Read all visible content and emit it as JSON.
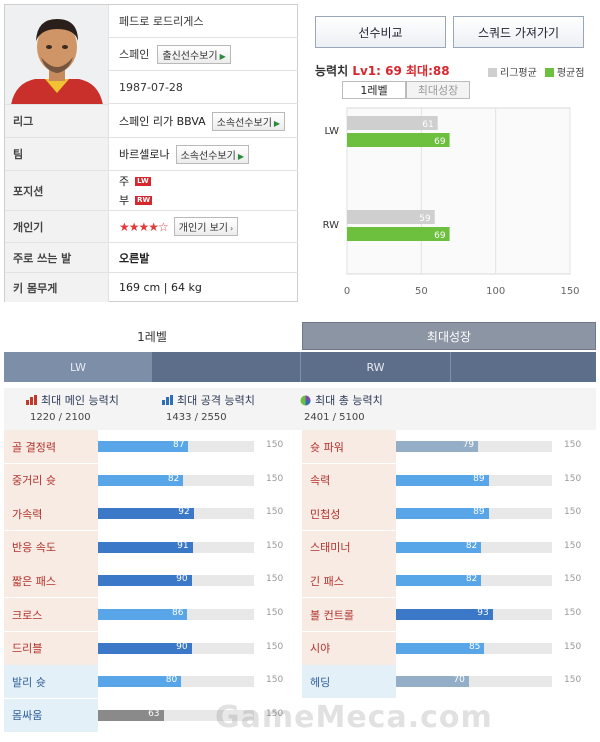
{
  "player": {
    "name": "페드로 로드리게스",
    "nation": "스페인",
    "nation_btn": "출신선수보기",
    "birth": "1987-07-28",
    "rows": [
      {
        "label": "리그",
        "value": "스페인 리가 BBVA",
        "btn": "소속선수보기"
      },
      {
        "label": "팀",
        "value": "바르셀로나",
        "btn": "소속선수보기"
      },
      {
        "label": "포지션",
        "main_label": "주",
        "main_pos": "LW",
        "sub_label": "부",
        "sub_pos": "RW"
      },
      {
        "label": "개인기",
        "stars": "★★★★☆",
        "btn": "개인기 보기"
      },
      {
        "label": "주로 쓰는 발",
        "value": "오른발"
      },
      {
        "label": "키 몸무게",
        "value": "169 cm | 64 kg"
      }
    ]
  },
  "compare": {
    "btn_compare": "선수비교",
    "btn_squad": "스쿼드 가져가기",
    "rating_label": "능력치",
    "rating_value": "Lv1: 69 최대:88",
    "legend": [
      {
        "label": "리그평균",
        "color": "#cfcfcf"
      },
      {
        "label": "평균점",
        "color": "#6dbf3e"
      }
    ],
    "tab_level1": "1레벨",
    "tab_max": "최대성장"
  },
  "chart_data": {
    "type": "bar",
    "orientation": "horizontal",
    "categories": [
      "LW",
      "RW"
    ],
    "series": [
      {
        "name": "리그평균",
        "values": [
          61,
          59
        ],
        "color": "#cfcfcf"
      },
      {
        "name": "평균점",
        "values": [
          69,
          69
        ],
        "color": "#6dbf3e"
      }
    ],
    "xlim": [
      0,
      150
    ],
    "xticks": [
      0,
      50,
      100,
      150
    ],
    "grid": true
  },
  "level_tabs": {
    "level1": "1레벨",
    "max": "최대성장"
  },
  "positions": [
    "LW",
    "RW"
  ],
  "summary": [
    {
      "title": "최대 메인 능력치",
      "value": "1220 / 2100"
    },
    {
      "title": "최대 공격 능력치",
      "value": "1433 / 2550"
    },
    {
      "title": "최대 총 능력치",
      "value": "2401 / 5100"
    }
  ],
  "stats_left": [
    {
      "label": "골 결정력",
      "value": 87
    },
    {
      "label": "중거리 슛",
      "value": 82
    },
    {
      "label": "가속력",
      "value": 92
    },
    {
      "label": "반응 속도",
      "value": 91
    },
    {
      "label": "짧은 패스",
      "value": 90
    },
    {
      "label": "크로스",
      "value": 86
    },
    {
      "label": "드리블",
      "value": 90
    },
    {
      "label": "발리 슛",
      "value": 80
    },
    {
      "label": "몸싸움",
      "value": 63
    }
  ],
  "stats_right": [
    {
      "label": "슛 파워",
      "value": 79
    },
    {
      "label": "속력",
      "value": 89
    },
    {
      "label": "민첩성",
      "value": 89
    },
    {
      "label": "스태미너",
      "value": 82
    },
    {
      "label": "긴 패스",
      "value": 82
    },
    {
      "label": "볼 컨트롤",
      "value": 93
    },
    {
      "label": "시야",
      "value": 85
    },
    {
      "label": "헤딩",
      "value": 70
    }
  ],
  "stat_max": 150,
  "stat_max_label": "150",
  "watermark": "GameMeca.com"
}
